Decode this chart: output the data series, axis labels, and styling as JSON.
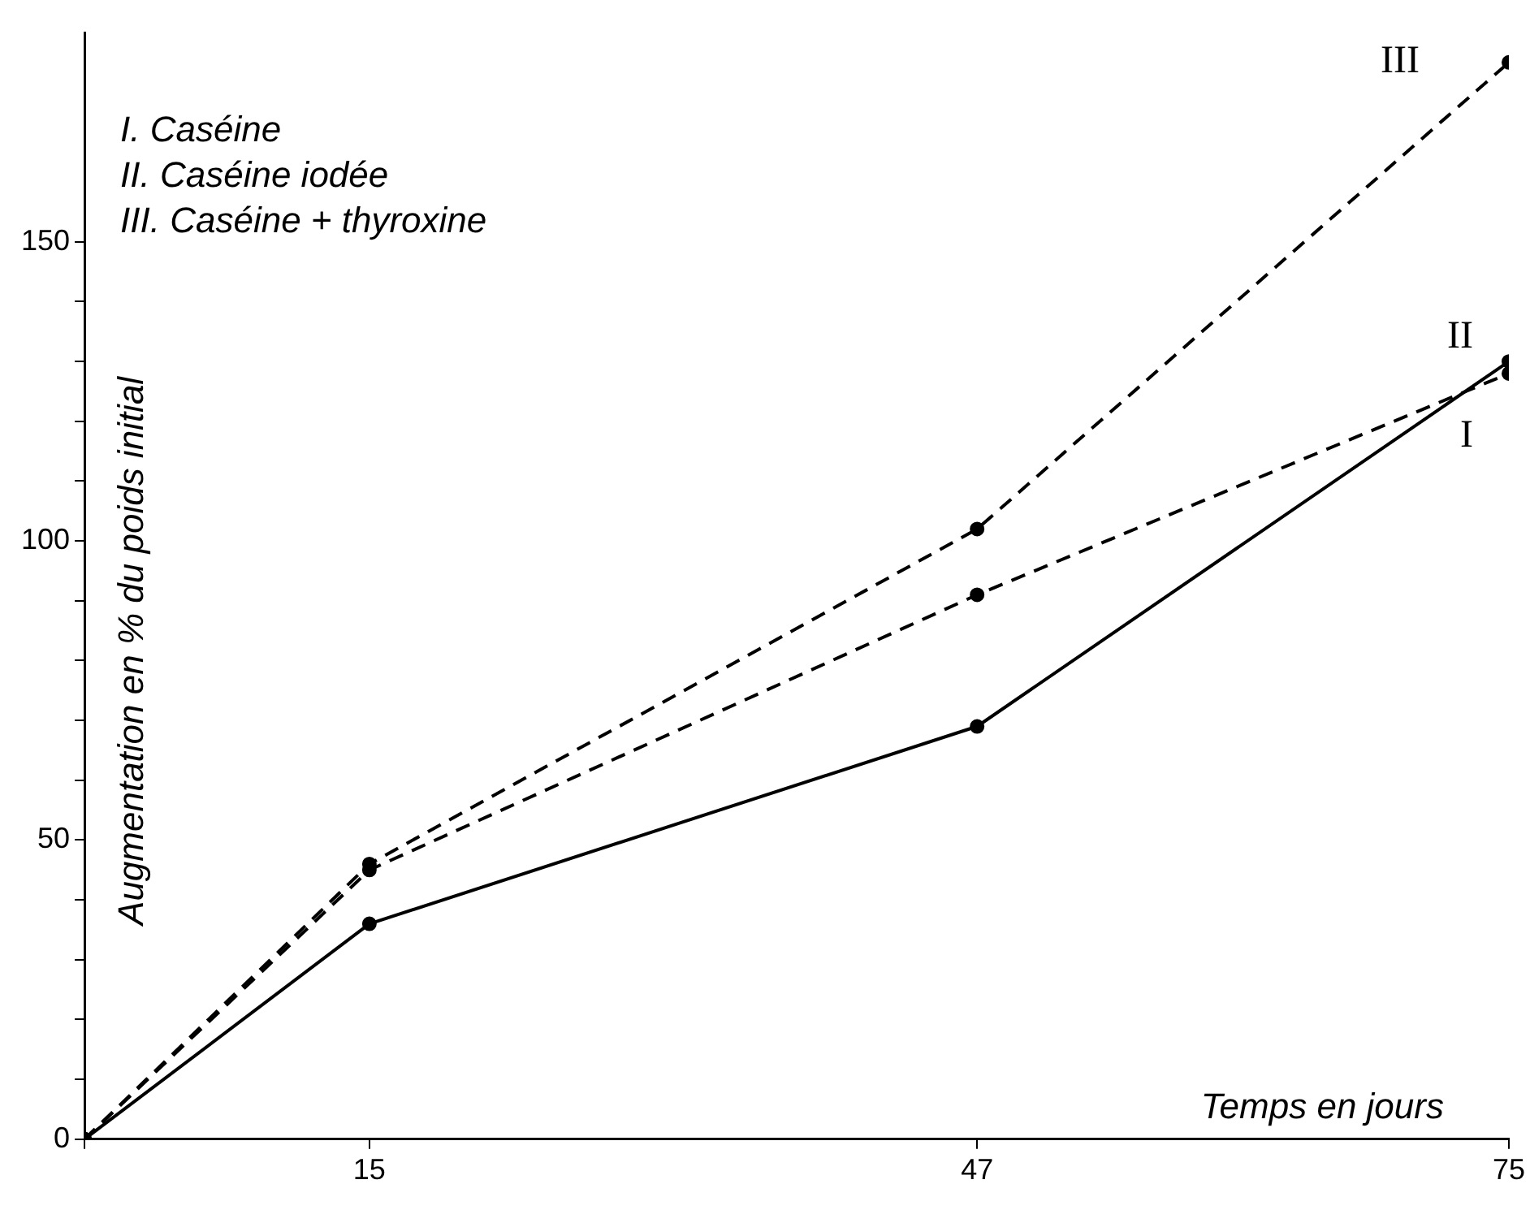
{
  "chart_data": {
    "type": "line",
    "xlabel": "Temps en jours",
    "ylabel": "Augmentation en % du poids initial",
    "x": [
      0,
      15,
      47,
      75
    ],
    "series": [
      {
        "name": "I",
        "color": "#000000",
        "line_style": "solid",
        "values": [
          0,
          36,
          69,
          130
        ]
      },
      {
        "name": "II",
        "color": "#000000",
        "line_style": "dashed",
        "values": [
          0,
          45,
          91,
          128
        ]
      },
      {
        "name": "III",
        "color": "#000000",
        "line_style": "dashed",
        "values": [
          0,
          46,
          102,
          180
        ]
      }
    ],
    "xlim": [
      0,
      75
    ],
    "xticks": [
      {
        "value": 0,
        "label": null
      },
      15,
      47,
      75
    ],
    "ylim": [
      0,
      185
    ],
    "yticks": [
      0,
      {
        "value": 10,
        "label": null
      },
      {
        "value": 20,
        "label": null
      },
      {
        "value": 30,
        "label": null
      },
      {
        "value": 40,
        "label": null
      },
      50,
      {
        "value": 60,
        "label": null
      },
      {
        "value": 70,
        "label": null
      },
      {
        "value": 80,
        "label": null
      },
      {
        "value": 90,
        "label": null
      },
      100,
      {
        "value": 110,
        "label": null
      },
      {
        "value": 120,
        "label": null
      },
      {
        "value": 130,
        "label": null
      },
      {
        "value": 140,
        "label": null
      },
      150
    ],
    "annotations": [
      "I. Caséine",
      "II. Caséine iodée",
      "III. Caséine + thyroxine"
    ],
    "marker": "circle",
    "grid": false
  }
}
